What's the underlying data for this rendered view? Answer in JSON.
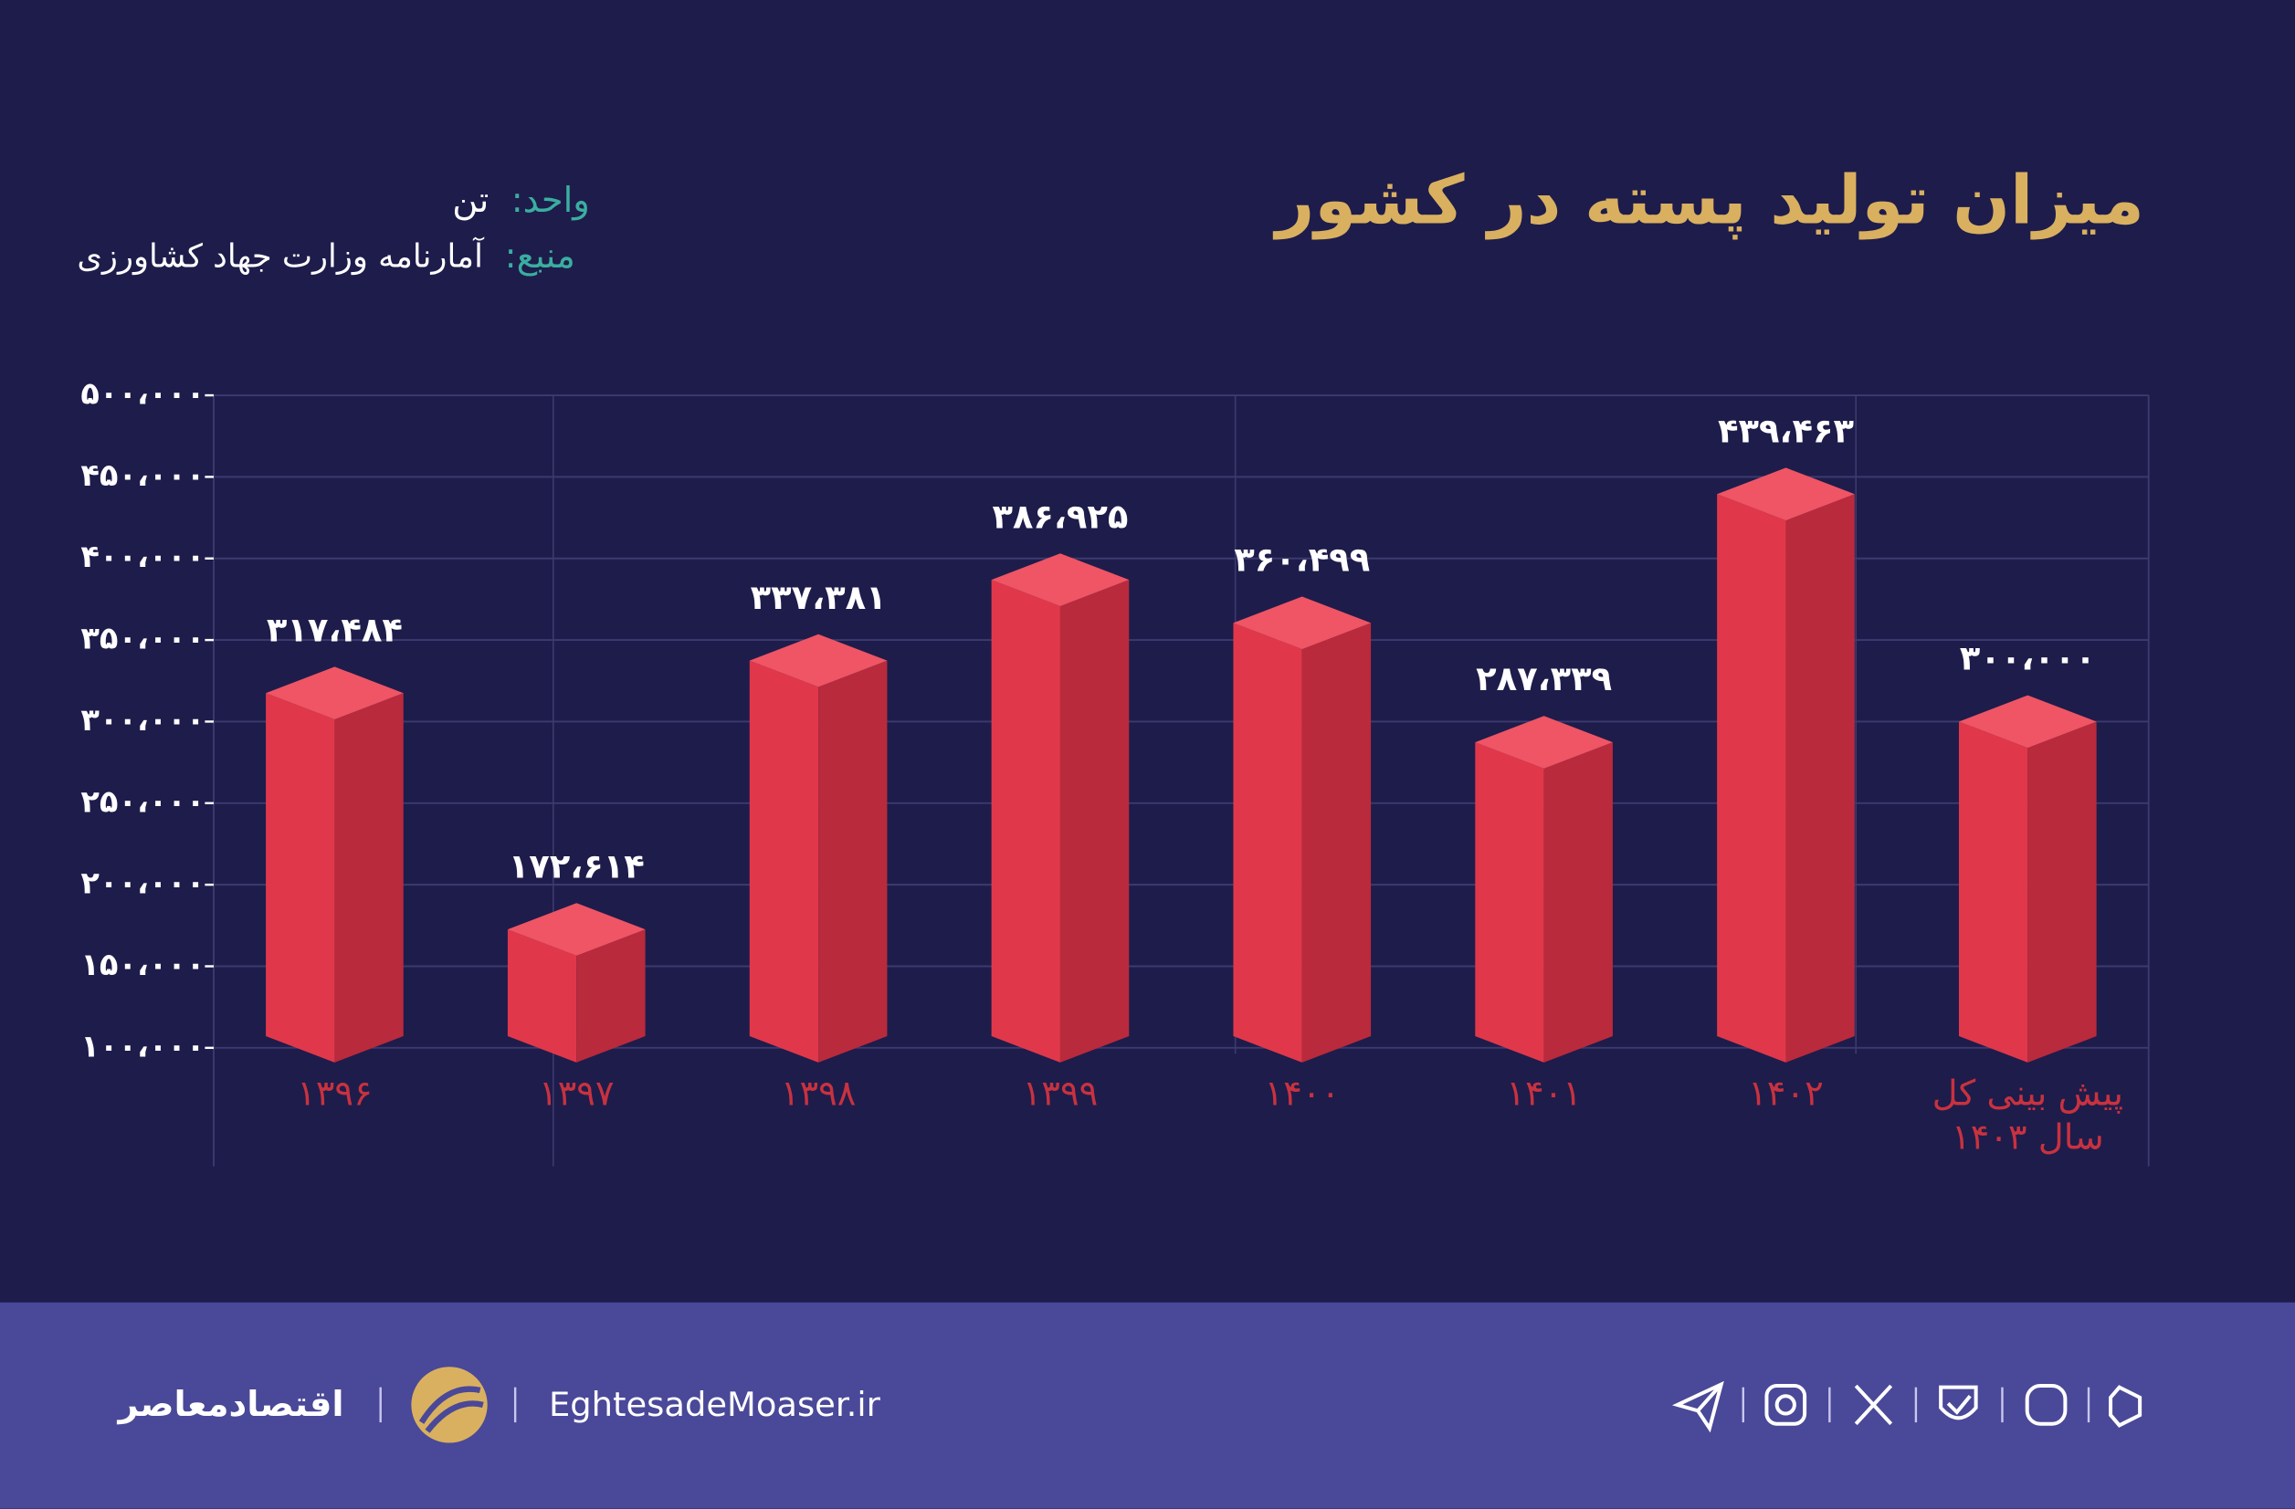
{
  "header": {
    "title": "میزان تولید پسته در کشور",
    "unit_label": "واحد:",
    "unit": "تن",
    "source_label": "منبع:",
    "source": "آمارنامه وزارت جهاد کشاورزی"
  },
  "chart_data": {
    "type": "bar",
    "categories": [
      "۱۳۹۶",
      "۱۳۹۷",
      "۱۳۹۸",
      "۱۳۹۹",
      "۱۴۰۰",
      "۱۴۰۱",
      "۱۴۰۲",
      "پیش بینی کل سال ۱۴۰۳"
    ],
    "values": [
      317484,
      172614,
      337381,
      386925,
      360499,
      287339,
      439463,
      300000
    ],
    "value_labels": [
      "۳۱۷،۴۸۴",
      "۱۷۲،۶۱۴",
      "۳۳۷،۳۸۱",
      "۳۸۶،۹۲۵",
      "۳۶۰،۴۹۹",
      "۲۸۷،۳۳۹",
      "۴۳۹،۴۶۳",
      "۳۰۰،۰۰۰"
    ],
    "color": "#e0384a",
    "ylim": [
      100000,
      500000
    ],
    "yticks": [
      {
        "value": 100000,
        "label": "۱۰۰،۰۰۰"
      },
      {
        "value": 150000,
        "label": "۱۵۰،۰۰۰"
      },
      {
        "value": 200000,
        "label": "۲۰۰،۰۰۰"
      },
      {
        "value": 250000,
        "label": "۲۵۰،۰۰۰"
      },
      {
        "value": 300000,
        "label": "۳۰۰،۰۰۰"
      },
      {
        "value": 350000,
        "label": "۳۵۰،۰۰۰"
      },
      {
        "value": 400000,
        "label": "۴۰۰،۰۰۰"
      },
      {
        "value": 450000,
        "label": "۴۵۰،۰۰۰"
      },
      {
        "value": 500000,
        "label": "۵۰۰،۰۰۰"
      }
    ],
    "grid": true
  },
  "footer": {
    "brand": "اقتصادمعاصر",
    "site": "EghtesadeMoaser.ir"
  }
}
